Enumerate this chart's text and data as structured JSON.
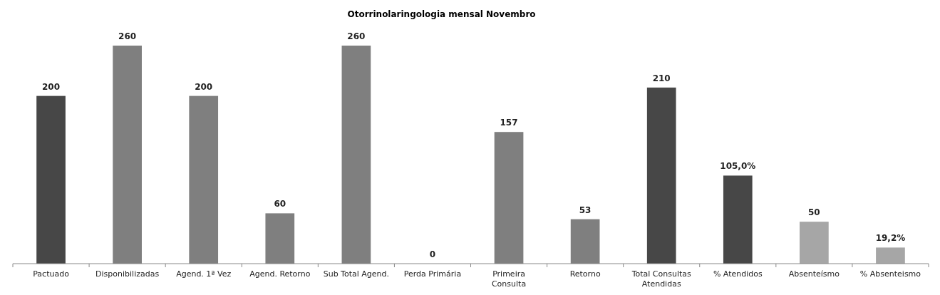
{
  "chart_data": {
    "type": "bar",
    "title": "Otorrinolaringologia mensal  Novembro",
    "categories": [
      "Pactuado",
      "Disponibilizadas",
      "Agend. 1ª Vez",
      "Agend. Retorno",
      "Sub Total Agend.",
      "Perda Primária",
      "Primeira Consulta",
      "Retorno",
      "Total Consultas Atendidas",
      "% Atendidos",
      "Absenteísmo",
      "% Absenteismo"
    ],
    "values": [
      200,
      260,
      200,
      60,
      260,
      0,
      157,
      53,
      210,
      105,
      50,
      19.2
    ],
    "value_labels": [
      "200",
      "260",
      "200",
      "60",
      "260",
      "0",
      "157",
      "53",
      "210",
      "105,0%",
      "50",
      "19,2%"
    ],
    "colors": [
      "#474747",
      "#7f7f7f",
      "#7f7f7f",
      "#7f7f7f",
      "#7f7f7f",
      "#7f7f7f",
      "#7f7f7f",
      "#7f7f7f",
      "#474747",
      "#474747",
      "#a6a6a6",
      "#a6a6a6"
    ]
  }
}
